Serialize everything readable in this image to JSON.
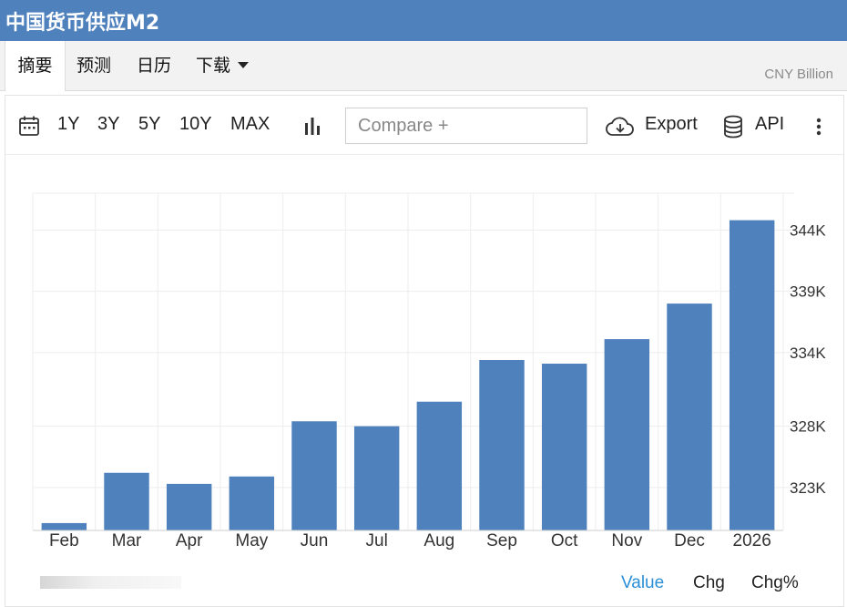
{
  "header": {
    "title": "中国货币供应M2"
  },
  "tabs": [
    "摘要",
    "预测",
    "日历",
    "下载"
  ],
  "toolbar": {
    "ranges": [
      "1Y",
      "3Y",
      "5Y",
      "10Y",
      "MAX"
    ],
    "compare_placeholder": "Compare +",
    "export_label": "Export",
    "api_label": "API",
    "icons": [
      "calendar-icon",
      "bar-chart-icon",
      "cloud-download-icon",
      "database-icon",
      "more-vertical-icon"
    ]
  },
  "footer_tabs": [
    "Value",
    "Chg",
    "Chg%"
  ],
  "colors": {
    "header": "#4f81bd",
    "bar": "#4f81bd",
    "active_tab": "#2b8fd6"
  },
  "chart_data": {
    "type": "bar",
    "unit": "CNY Billion",
    "categories": [
      "Feb",
      "Mar",
      "Apr",
      "May",
      "Jun",
      "Jul",
      "Aug",
      "Sep",
      "Oct",
      "Nov",
      "Dec",
      "2026"
    ],
    "values": [
      320100,
      324200,
      323300,
      323900,
      328400,
      328000,
      330000,
      333400,
      333100,
      335100,
      338000,
      344800
    ],
    "yticks": [
      323000,
      328000,
      334000,
      339000,
      344000
    ],
    "ytick_labels": [
      "323K",
      "328K",
      "334K",
      "339K",
      "344K"
    ],
    "ylim": [
      319500,
      347000
    ],
    "grid": true,
    "ylabel_position": "right"
  }
}
